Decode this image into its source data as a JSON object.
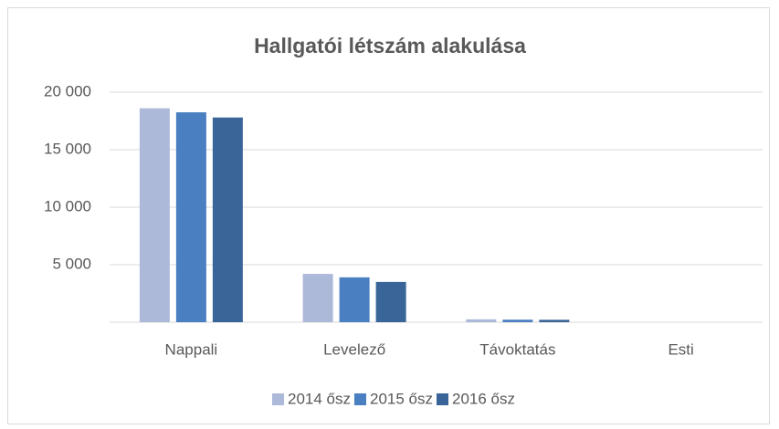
{
  "chart_data": {
    "type": "bar",
    "title": "Hallgatói létszám alakulása",
    "categories": [
      "Nappali",
      "Levelező",
      "Távoktatás",
      "Esti"
    ],
    "series": [
      {
        "name": "2014 ősz",
        "color": "#adb9d9",
        "values": [
          18600,
          4200,
          250,
          0
        ]
      },
      {
        "name": "2015 ősz",
        "color": "#4a7fc1",
        "values": [
          18250,
          3900,
          220,
          0
        ]
      },
      {
        "name": "2016 ősz",
        "color": "#3a6598",
        "values": [
          17800,
          3500,
          210,
          0
        ]
      }
    ],
    "ylim": [
      0,
      20000
    ],
    "yticks": [
      {
        "value": 5000,
        "label": "5 000"
      },
      {
        "value": 10000,
        "label": "10 000"
      },
      {
        "value": 15000,
        "label": "15 000"
      },
      {
        "value": 20000,
        "label": "20 000"
      }
    ],
    "grid": true,
    "legend": "bottom"
  }
}
